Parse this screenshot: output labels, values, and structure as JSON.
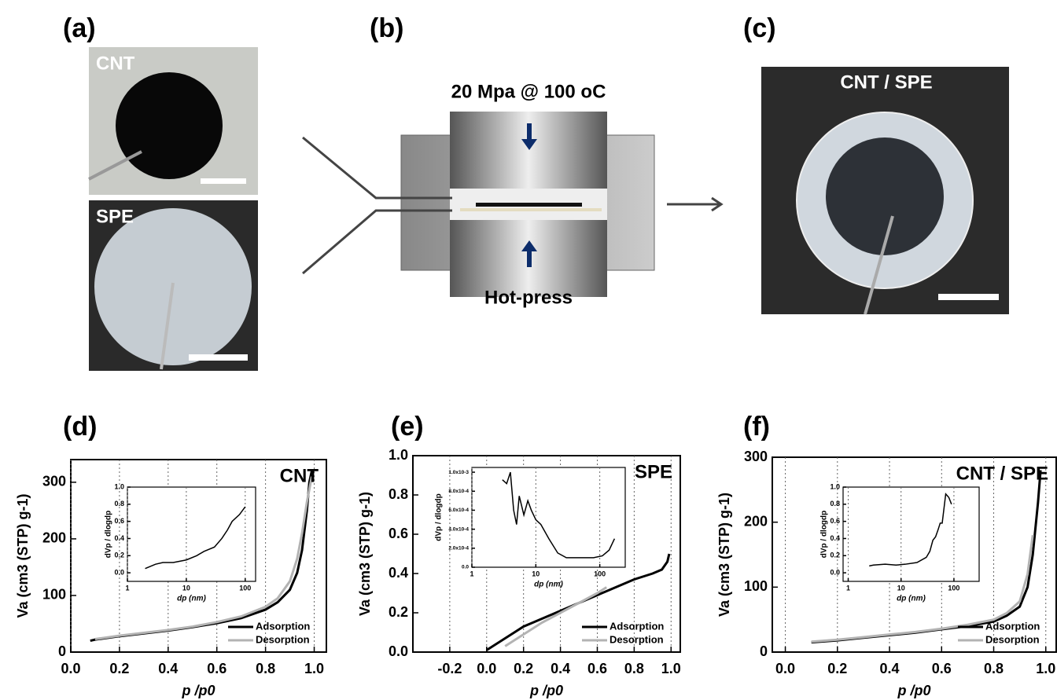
{
  "panels": {
    "a": {
      "label": "(a)",
      "photo_labels": [
        "CNT",
        "SPE"
      ]
    },
    "b": {
      "label": "(b)",
      "condition": "20 Mpa @ 100 oC",
      "caption": "Hot-press"
    },
    "c": {
      "label": "(c)",
      "photo_label": "CNT / SPE"
    }
  },
  "chart_data": [
    {
      "type": "line",
      "label": "(d)",
      "annotation": "CNT",
      "xlabel": "p /p0",
      "ylabel": "Va (cm3 (STP) g-1)",
      "xlim": [
        0,
        1.05
      ],
      "ylim": [
        0,
        340
      ],
      "xticks": [
        {
          "value": 0,
          "label": "0.0"
        },
        0.2,
        0.4,
        0.6,
        0.8,
        {
          "value": 1,
          "label": "1.0"
        }
      ],
      "yticks": [
        0,
        100,
        200,
        300
      ],
      "grid": true,
      "legend": "lower right",
      "series": [
        {
          "name": "Adsorption",
          "color": "#000000",
          "x": [
            0.08,
            0.1,
            0.2,
            0.3,
            0.4,
            0.5,
            0.6,
            0.7,
            0.8,
            0.85,
            0.9,
            0.93,
            0.95,
            0.97,
            0.98,
            0.99
          ],
          "values": [
            20,
            22,
            28,
            33,
            38,
            44,
            51,
            60,
            75,
            88,
            110,
            140,
            180,
            250,
            300,
            320
          ]
        },
        {
          "name": "Desorption",
          "color": "#b3b3b3",
          "x": [
            0.1,
            0.2,
            0.3,
            0.4,
            0.5,
            0.6,
            0.7,
            0.8,
            0.85,
            0.9,
            0.93,
            0.95,
            0.97,
            0.99
          ],
          "values": [
            23,
            29,
            34,
            39,
            45,
            53,
            63,
            80,
            95,
            125,
            165,
            210,
            265,
            310
          ]
        }
      ],
      "inset": {
        "type": "line",
        "xscale": "log",
        "xlabel": "dp (nm)",
        "ylabel": "dVp / dlogdp",
        "xlim": [
          1,
          150
        ],
        "ylim": [
          -0.1,
          1.0
        ],
        "xticks": [
          1,
          10,
          100
        ],
        "yticks": [
          {
            "value": 0,
            "label": "0.0"
          },
          0.2,
          0.4,
          0.6,
          0.8,
          {
            "value": 1,
            "label": "1.0"
          }
        ],
        "grid": true,
        "color": "#000000",
        "x": [
          2,
          3,
          4,
          6,
          10,
          15,
          20,
          30,
          40,
          50,
          60,
          80,
          100
        ],
        "values": [
          0.05,
          0.1,
          0.12,
          0.12,
          0.15,
          0.2,
          0.25,
          0.3,
          0.4,
          0.5,
          0.6,
          0.68,
          0.77
        ]
      }
    },
    {
      "type": "line",
      "label": "(e)",
      "annotation": "SPE",
      "xlabel": "p /p0",
      "ylabel": "Va (cm3 (STP) g-1)",
      "xlim": [
        -0.4,
        1.05
      ],
      "ylim": [
        0,
        1
      ],
      "xticks": [
        -0.2,
        {
          "value": 0,
          "label": "0.0"
        },
        0.2,
        0.4,
        0.6,
        0.8,
        {
          "value": 1,
          "label": "1.0"
        }
      ],
      "yticks": [
        {
          "value": 0,
          "label": "0.0"
        },
        0.2,
        0.4,
        0.6,
        0.8,
        {
          "value": 1,
          "label": "1.0"
        }
      ],
      "grid": true,
      "legend": "lower right",
      "series": [
        {
          "name": "Adsorption",
          "color": "#000000",
          "x": [
            0,
            0.05,
            0.1,
            0.15,
            0.2,
            0.25,
            0.3,
            0.35,
            0.4,
            0.45,
            0.5,
            0.55,
            0.6,
            0.65,
            0.7,
            0.8,
            0.9,
            0.95,
            0.98,
            0.99
          ],
          "values": [
            0.01,
            0.04,
            0.07,
            0.1,
            0.13,
            0.15,
            0.17,
            0.19,
            0.21,
            0.23,
            0.25,
            0.27,
            0.29,
            0.31,
            0.33,
            0.37,
            0.4,
            0.42,
            0.46,
            0.5
          ]
        },
        {
          "name": "Desorption",
          "color": "#b3b3b3",
          "x": [
            0.1,
            0.2,
            0.3,
            0.4,
            0.5,
            0.6,
            0.65
          ],
          "values": [
            0.03,
            0.09,
            0.15,
            0.2,
            0.25,
            0.3,
            0.33
          ]
        }
      ],
      "inset": {
        "type": "line",
        "xscale": "log",
        "xlabel": "dp (nm)",
        "ylabel": "dVp / dlogdp",
        "xlim": [
          1,
          250
        ],
        "ylim": [
          0,
          0.00105
        ],
        "xticks": [
          1,
          10,
          100
        ],
        "yticks": [
          {
            "value": 0,
            "label": "0.0"
          },
          {
            "value": 0.0002,
            "label": "2.0x10-4"
          },
          {
            "value": 0.0004,
            "label": "4.0x10-4"
          },
          {
            "value": 0.0006,
            "label": "6.0x10-4"
          },
          {
            "value": 0.0008,
            "label": "8.0x10-4"
          },
          {
            "value": 0.001,
            "label": "1.0x10-3"
          }
        ],
        "grid": true,
        "color": "#000000",
        "x": [
          3,
          3.5,
          4,
          4.5,
          5,
          5.5,
          6.5,
          7.5,
          8.5,
          10,
          12,
          16,
          22,
          30,
          50,
          80,
          110,
          140,
          170
        ],
        "values": [
          0.00092,
          0.00088,
          0.001,
          0.0006,
          0.00045,
          0.00075,
          0.00055,
          0.0007,
          0.0006,
          0.0005,
          0.00045,
          0.0003,
          0.00015,
          0.0001,
          0.0001,
          0.0001,
          0.00012,
          0.00018,
          0.0003
        ]
      }
    },
    {
      "type": "line",
      "label": "(f)",
      "annotation": "CNT / SPE",
      "xlabel": "p /p0",
      "ylabel": "Va (cm3 (STP) g-1)",
      "xlim": [
        -0.05,
        1.04
      ],
      "ylim": [
        0,
        300
      ],
      "xticks": [
        {
          "value": 0,
          "label": "0.0"
        },
        0.2,
        0.4,
        0.6,
        0.8,
        {
          "value": 1,
          "label": "1.0"
        }
      ],
      "yticks": [
        0,
        100,
        200,
        300
      ],
      "grid": true,
      "legend": "lower right",
      "series": [
        {
          "name": "Adsorption",
          "color": "#000000",
          "x": [
            0.1,
            0.2,
            0.3,
            0.4,
            0.5,
            0.6,
            0.7,
            0.8,
            0.85,
            0.9,
            0.93,
            0.95,
            0.97,
            0.98
          ],
          "values": [
            15,
            18,
            22,
            26,
            30,
            35,
            40,
            47,
            56,
            70,
            100,
            150,
            230,
            280
          ]
        },
        {
          "name": "Desorption",
          "color": "#b3b3b3",
          "x": [
            0.1,
            0.2,
            0.3,
            0.4,
            0.5,
            0.6,
            0.7,
            0.8,
            0.85,
            0.9,
            0.93,
            0.95
          ],
          "values": [
            16,
            19,
            23,
            27,
            31,
            36,
            42,
            50,
            60,
            78,
            120,
            180
          ]
        }
      ],
      "inset": {
        "type": "line",
        "xscale": "log",
        "xlabel": "dp (nm)",
        "ylabel": "dVp / dlogdp",
        "xlim": [
          0.8,
          300
        ],
        "ylim": [
          -0.1,
          1.0
        ],
        "xticks": [
          1,
          10,
          100
        ],
        "yticks": [
          {
            "value": 0,
            "label": "0.0"
          },
          0.2,
          0.4,
          0.6,
          0.8,
          {
            "value": 1,
            "label": "1.0"
          }
        ],
        "grid": true,
        "color": "#000000",
        "x": [
          2.5,
          3,
          5,
          8,
          12,
          20,
          30,
          35,
          40,
          45,
          50,
          55,
          60,
          70,
          80,
          90
        ],
        "values": [
          0.08,
          0.09,
          0.1,
          0.09,
          0.1,
          0.12,
          0.18,
          0.25,
          0.38,
          0.42,
          0.5,
          0.58,
          0.58,
          0.92,
          0.88,
          0.8
        ]
      }
    }
  ]
}
